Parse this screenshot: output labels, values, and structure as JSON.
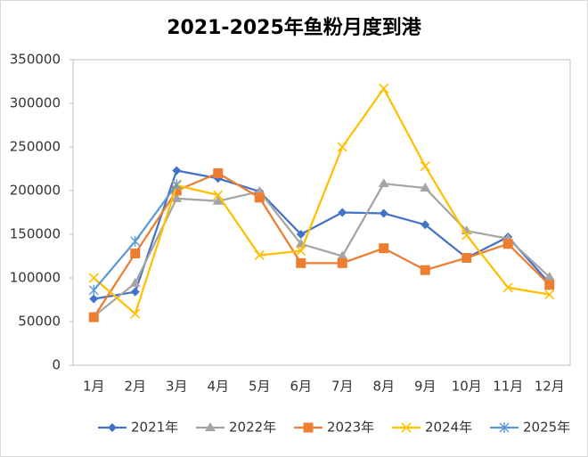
{
  "chart_data": {
    "type": "line",
    "title": "2021-2025年鱼粉月度到港",
    "categories": [
      "1月",
      "2月",
      "3月",
      "4月",
      "5月",
      "6月",
      "7月",
      "8月",
      "9月",
      "10月",
      "11月",
      "12月"
    ],
    "series": [
      {
        "name": "2021年",
        "color": "#4472c4",
        "marker": "diamond",
        "values": [
          76000,
          84000,
          223000,
          214000,
          199000,
          150000,
          175000,
          174000,
          161000,
          123000,
          147000,
          94000
        ]
      },
      {
        "name": "2022年",
        "color": "#a5a5a5",
        "marker": "triangle",
        "values": [
          56000,
          94000,
          191000,
          188000,
          199000,
          139000,
          125000,
          208000,
          203000,
          154000,
          145000,
          101000
        ]
      },
      {
        "name": "2023年",
        "color": "#ed7d31",
        "marker": "square",
        "values": [
          55000,
          128000,
          200000,
          220000,
          192000,
          117000,
          117000,
          134000,
          109000,
          123000,
          139000,
          92000
        ]
      },
      {
        "name": "2024年",
        "color": "#ffc000",
        "marker": "x",
        "values": [
          100000,
          59000,
          206000,
          195000,
          126000,
          131000,
          250000,
          317000,
          228000,
          149000,
          89000,
          81000
        ]
      },
      {
        "name": "2025年",
        "color": "#5b9bd5",
        "marker": "star",
        "values": [
          86000,
          142000,
          207000,
          null,
          null,
          null,
          null,
          null,
          null,
          null,
          null,
          null
        ]
      }
    ],
    "ylim": [
      0,
      350000
    ],
    "yticks": [
      0,
      50000,
      100000,
      150000,
      200000,
      250000,
      300000,
      350000
    ],
    "legend": "bottom"
  }
}
